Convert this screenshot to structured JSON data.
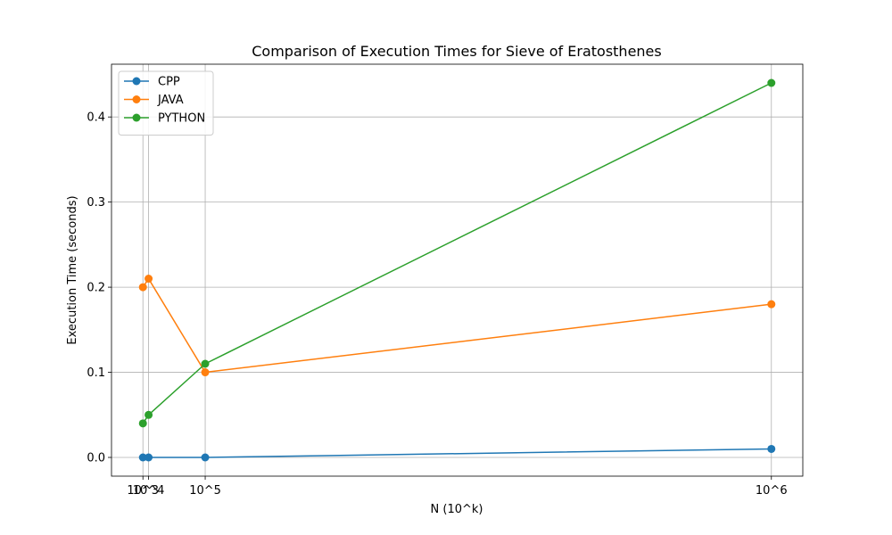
{
  "chart_data": {
    "type": "line",
    "title": "Comparison of Execution Times for Sieve of Eratosthenes",
    "xlabel": "N (10^k)",
    "ylabel": "Execution Time (seconds)",
    "x": [
      1000,
      10000,
      100000,
      1000000
    ],
    "xlim": [
      -48950,
      1049950
    ],
    "ylim": [
      -0.022,
      0.462
    ],
    "xticks": [
      {
        "value": 1000,
        "label": "10^3"
      },
      {
        "value": 10000,
        "label": "10^4"
      },
      {
        "value": 100000,
        "label": "10^5"
      },
      {
        "value": 1000000,
        "label": "10^6"
      }
    ],
    "yticks": [
      {
        "value": 0.0,
        "label": "0.0"
      },
      {
        "value": 0.1,
        "label": "0.1"
      },
      {
        "value": 0.2,
        "label": "0.2"
      },
      {
        "value": 0.3,
        "label": "0.3"
      },
      {
        "value": 0.4,
        "label": "0.4"
      }
    ],
    "grid": true,
    "legend_position": "top-left",
    "series": [
      {
        "name": "CPP",
        "color": "#1f77b4",
        "values": [
          0.0,
          0.0,
          0.0,
          0.01
        ]
      },
      {
        "name": "JAVA",
        "color": "#ff7f0e",
        "values": [
          0.2,
          0.21,
          0.1,
          0.18
        ]
      },
      {
        "name": "PYTHON",
        "color": "#2ca02c",
        "values": [
          0.04,
          0.05,
          0.11,
          0.44
        ]
      }
    ]
  }
}
